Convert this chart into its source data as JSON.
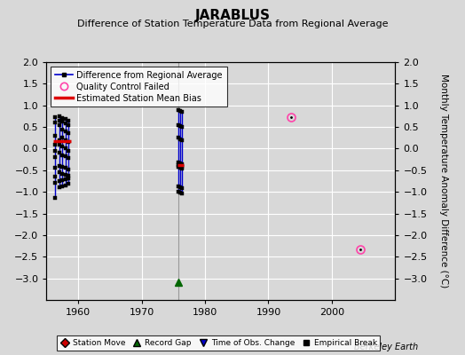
{
  "title": "JARABLUS",
  "subtitle": "Difference of Station Temperature Data from Regional Average",
  "ylabel_right": "Monthly Temperature Anomaly Difference (°C)",
  "credit": "Berkeley Earth",
  "xlim": [
    1955,
    2010
  ],
  "ylim": [
    -3.5,
    2.0
  ],
  "yticks": [
    -3.0,
    -2.5,
    -2.0,
    -1.5,
    -1.0,
    -0.5,
    0.0,
    0.5,
    1.0,
    1.5,
    2.0
  ],
  "xticks": [
    1960,
    1970,
    1980,
    1990,
    2000
  ],
  "background_color": "#d8d8d8",
  "plot_bg_color": "#d8d8d8",
  "seg1_lines": [
    {
      "x": 1956.4,
      "y_vals": [
        0.72,
        0.6,
        0.3,
        0.1,
        -0.05,
        -0.2,
        -0.45,
        -0.65,
        -0.8,
        -1.15
      ]
    },
    {
      "x": 1957.0,
      "y_vals": [
        0.75,
        0.65,
        0.55,
        0.2,
        0.1,
        -0.1,
        -0.4,
        -0.55,
        -0.75,
        -0.9
      ]
    },
    {
      "x": 1957.5,
      "y_vals": [
        0.7,
        0.62,
        0.45,
        0.25,
        0.05,
        -0.15,
        -0.42,
        -0.58,
        -0.72,
        -0.88
      ]
    },
    {
      "x": 1958.0,
      "y_vals": [
        0.68,
        0.58,
        0.4,
        0.2,
        0.0,
        -0.18,
        -0.44,
        -0.6,
        -0.7,
        -0.85
      ]
    },
    {
      "x": 1958.5,
      "y_vals": [
        0.65,
        0.55,
        0.35,
        0.15,
        -0.05,
        -0.22,
        -0.48,
        -0.62,
        -0.68,
        -0.82
      ]
    }
  ],
  "seg1_bias_y": 0.18,
  "seg1_bias_x0": 1956.0,
  "seg1_bias_x1": 1958.8,
  "seg2_lines": [
    {
      "x": 1975.8,
      "y_vals": [
        0.9,
        0.55,
        0.25,
        -0.32,
        -0.38,
        -0.43,
        -0.88,
        -1.0
      ]
    },
    {
      "x": 1976.1,
      "y_vals": [
        0.88,
        0.52,
        0.22,
        -0.34,
        -0.4,
        -0.45,
        -0.9,
        -1.02
      ]
    },
    {
      "x": 1976.4,
      "y_vals": [
        0.85,
        0.5,
        0.2,
        -0.36,
        -0.42,
        -0.47,
        -0.92,
        -1.04
      ]
    }
  ],
  "seg2_bias_y": -0.38,
  "seg2_bias_x0": 1975.6,
  "seg2_bias_x1": 1976.6,
  "qc_points": [
    [
      1993.5,
      0.72
    ],
    [
      2004.5,
      -2.32
    ]
  ],
  "record_gap_x": 1975.8,
  "record_gap_y": -3.08,
  "gap_line_x": 1975.8,
  "line_color": "#0000cc",
  "marker_color": "#000000",
  "bias_color": "#dd0000",
  "qc_color": "#ff44aa",
  "gap_color": "#006600",
  "gap_line_color": "#999999"
}
